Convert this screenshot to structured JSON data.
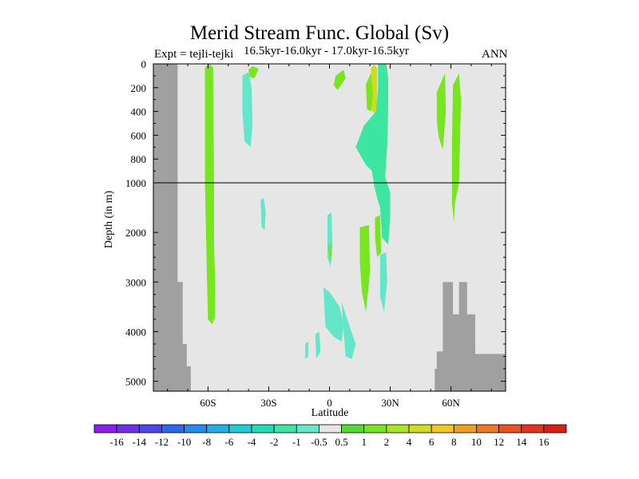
{
  "chart_data": {
    "type": "heatmap",
    "title": "Merid Stream Func. Global (Sv)",
    "subtitle_left": "Expt = tejli-tejki",
    "subtitle_center": "16.5kyr-16.0kyr - 17.0kyr-16.5kyr",
    "subtitle_right": "ANN",
    "xlabel": "Latitude",
    "ylabel": "Depth (in m)",
    "x_ticks": [
      "60S",
      "30S",
      "0",
      "30N",
      "60N"
    ],
    "x_tick_values": [
      -60,
      -30,
      0,
      30,
      60
    ],
    "xlim": [
      -87,
      87
    ],
    "y_ticks_upper": [
      "0",
      "200",
      "400",
      "600",
      "800",
      "1000"
    ],
    "y_tick_values_upper": [
      0,
      200,
      400,
      600,
      800,
      1000
    ],
    "y_ticks_lower": [
      "2000",
      "3000",
      "4000",
      "5000"
    ],
    "y_tick_values_lower": [
      2000,
      3000,
      4000,
      5000
    ],
    "y_break": 1000,
    "ylim": [
      0,
      5200
    ],
    "background_color": "#e6e6e6",
    "land_color": "#a0a0a0",
    "colorbar": {
      "labels": [
        "-16",
        "-14",
        "-12",
        "-10",
        "-8",
        "-6",
        "-4",
        "-2",
        "-1",
        "-0.5",
        "0.5",
        "1",
        "2",
        "4",
        "6",
        "8",
        "10",
        "12",
        "14",
        "16"
      ],
      "colors": [
        "#8c1ef0",
        "#6e2ef0",
        "#4b46f0",
        "#2d69f0",
        "#1e8cf0",
        "#1eafe6",
        "#1ecdd2",
        "#1edcb4",
        "#3ce6a0",
        "#64e6c8",
        "#e6e6e6",
        "#50dc32",
        "#78e61e",
        "#aae61e",
        "#d2dc1e",
        "#f0c81e",
        "#f0a01e",
        "#f0781e",
        "#f0501e",
        "#e6321e",
        "#dc1e14"
      ]
    },
    "land_regions": [
      {
        "name": "antarctica",
        "points": [
          [
            -87,
            0
          ],
          [
            -75,
            0
          ],
          [
            -75,
            3000
          ],
          [
            -72.5,
            3000
          ],
          [
            -72.5,
            4250
          ],
          [
            -70.5,
            4250
          ],
          [
            -70.5,
            4700
          ],
          [
            -68.5,
            4700
          ],
          [
            -68.5,
            5200
          ],
          [
            -87,
            5200
          ]
        ]
      },
      {
        "name": "arctic-shelf",
        "points": [
          [
            52,
            5200
          ],
          [
            52,
            4750
          ],
          [
            53,
            4750
          ],
          [
            53,
            4400
          ],
          [
            56,
            4400
          ],
          [
            56,
            3000
          ],
          [
            61,
            3000
          ],
          [
            61,
            3650
          ],
          [
            64,
            3650
          ],
          [
            64,
            3000
          ],
          [
            68,
            3000
          ],
          [
            68,
            3650
          ],
          [
            72,
            3650
          ],
          [
            72,
            4450
          ],
          [
            87,
            4450
          ],
          [
            87,
            5200
          ]
        ]
      }
    ],
    "anomalies": [
      {
        "name": "southern-ocean-band",
        "value": 1,
        "points": [
          [
            -61.5,
            30
          ],
          [
            -59.5,
            0
          ],
          [
            -57.5,
            30
          ],
          [
            -57,
            1000
          ],
          [
            -57,
            2200
          ],
          [
            -56.5,
            3000
          ],
          [
            -56.5,
            3700
          ],
          [
            -58,
            3850
          ],
          [
            -60,
            3750
          ],
          [
            -60.5,
            3000
          ],
          [
            -61,
            2000
          ],
          [
            -61.5,
            1000
          ]
        ]
      },
      {
        "name": "south-midlat-upper",
        "value": -1,
        "points": [
          [
            -43,
            100
          ],
          [
            -40,
            70
          ],
          [
            -38.5,
            200
          ],
          [
            -38,
            500
          ],
          [
            -39,
            700
          ],
          [
            -42,
            650
          ],
          [
            -43,
            400
          ]
        ]
      },
      {
        "name": "south-midlat-patch",
        "value": 1,
        "points": [
          [
            -40,
            50
          ],
          [
            -38,
            20
          ],
          [
            -35,
            40
          ],
          [
            -37,
            120
          ],
          [
            -39.5,
            110
          ]
        ]
      },
      {
        "name": "south-midlat-deep",
        "value": -1,
        "points": [
          [
            -34,
            1350
          ],
          [
            -32.5,
            1300
          ],
          [
            -31.5,
            1600
          ],
          [
            -32,
            1950
          ],
          [
            -33.5,
            1900
          ]
        ]
      },
      {
        "name": "north-tropic-upper-green",
        "value": 1,
        "points": [
          [
            3,
            100
          ],
          [
            7,
            50
          ],
          [
            8,
            120
          ],
          [
            4,
            220
          ],
          [
            2,
            180
          ]
        ]
      },
      {
        "name": "tropical-column-yellow",
        "value": 4,
        "points": [
          [
            20.5,
            40
          ],
          [
            22,
            0
          ],
          [
            23.5,
            40
          ],
          [
            23.5,
            380
          ],
          [
            22,
            420
          ],
          [
            20.5,
            380
          ]
        ]
      },
      {
        "name": "subtropic-north-descent",
        "value": -2,
        "points": [
          [
            24,
            0
          ],
          [
            28,
            0
          ],
          [
            29,
            120
          ],
          [
            29,
            400
          ],
          [
            28.5,
            700
          ],
          [
            27.5,
            950
          ],
          [
            30,
            1200
          ],
          [
            30,
            1700
          ],
          [
            29,
            2250
          ],
          [
            26,
            2100
          ],
          [
            25,
            1500
          ],
          [
            23.5,
            1300
          ],
          [
            22,
            1050
          ],
          [
            21,
            900
          ],
          [
            18,
            850
          ],
          [
            13,
            700
          ],
          [
            17,
            520
          ],
          [
            20,
            460
          ],
          [
            23,
            400
          ],
          [
            24,
            200
          ]
        ]
      },
      {
        "name": "subtropic-north-green",
        "value": 1,
        "points": [
          [
            18,
            170
          ],
          [
            20.5,
            80
          ],
          [
            21.5,
            260
          ],
          [
            20.5,
            400
          ],
          [
            18.5,
            380
          ]
        ]
      },
      {
        "name": "equator-deep-anomaly-a",
        "value": -1,
        "points": [
          [
            -3,
            3100
          ],
          [
            0,
            3200
          ],
          [
            5,
            3500
          ],
          [
            7,
            3850
          ],
          [
            6,
            4200
          ],
          [
            2,
            4100
          ],
          [
            -2,
            3900
          ]
        ]
      },
      {
        "name": "equator-deep-anomaly-b",
        "value": -1,
        "points": [
          [
            6,
            3400
          ],
          [
            10,
            3900
          ],
          [
            13,
            4250
          ],
          [
            11,
            4550
          ],
          [
            8,
            4500
          ],
          [
            7,
            4000
          ]
        ]
      },
      {
        "name": "equator-mid-anomaly",
        "value": -1,
        "points": [
          [
            -1,
            1650
          ],
          [
            1,
            1600
          ],
          [
            1.5,
            2300
          ],
          [
            0.5,
            2700
          ],
          [
            -1,
            2500
          ]
        ]
      },
      {
        "name": "equator-green-dot",
        "value": 1,
        "points": [
          [
            -0.5,
            2250
          ],
          [
            0.5,
            2200
          ],
          [
            1,
            2450
          ],
          [
            0.5,
            2600
          ],
          [
            -0.5,
            2400
          ]
        ]
      },
      {
        "name": "arctic-upper-green-a",
        "value": 1,
        "points": [
          [
            53,
            240
          ],
          [
            57,
            80
          ],
          [
            57.5,
            400
          ],
          [
            56,
            720
          ],
          [
            54,
            620
          ],
          [
            53,
            480
          ]
        ]
      },
      {
        "name": "arctic-upper-green-b",
        "value": 1,
        "points": [
          [
            61,
            180
          ],
          [
            64,
            80
          ],
          [
            65,
            300
          ],
          [
            64,
            1000
          ],
          [
            62,
            1400
          ],
          [
            61.5,
            1800
          ],
          [
            60.5,
            1400
          ],
          [
            60.5,
            700
          ]
        ]
      },
      {
        "name": "north-high-deep",
        "value": -1,
        "points": [
          [
            25,
            2450
          ],
          [
            28,
            2400
          ],
          [
            28.5,
            3000
          ],
          [
            27,
            3600
          ],
          [
            25,
            3300
          ]
        ]
      },
      {
        "name": "north-mid-deep-a",
        "value": 1,
        "points": [
          [
            22.5,
            1700
          ],
          [
            25,
            1650
          ],
          [
            25.5,
            2400
          ],
          [
            23.5,
            2500
          ],
          [
            22.5,
            2100
          ]
        ]
      },
      {
        "name": "north-mid-deep-b",
        "value": 1,
        "points": [
          [
            15,
            1900
          ],
          [
            19.5,
            1850
          ],
          [
            20,
            2800
          ],
          [
            18,
            3600
          ],
          [
            16,
            3200
          ],
          [
            15,
            2600
          ]
        ]
      },
      {
        "name": "south-tropics-blob-a",
        "value": -1,
        "points": [
          [
            -7,
            4050
          ],
          [
            -5,
            4000
          ],
          [
            -4.5,
            4400
          ],
          [
            -6.5,
            4550
          ]
        ]
      },
      {
        "name": "south-tropics-blob-b",
        "value": -1,
        "points": [
          [
            -12,
            4250
          ],
          [
            -10.5,
            4200
          ],
          [
            -10.5,
            4500
          ],
          [
            -12,
            4550
          ]
        ]
      }
    ]
  }
}
